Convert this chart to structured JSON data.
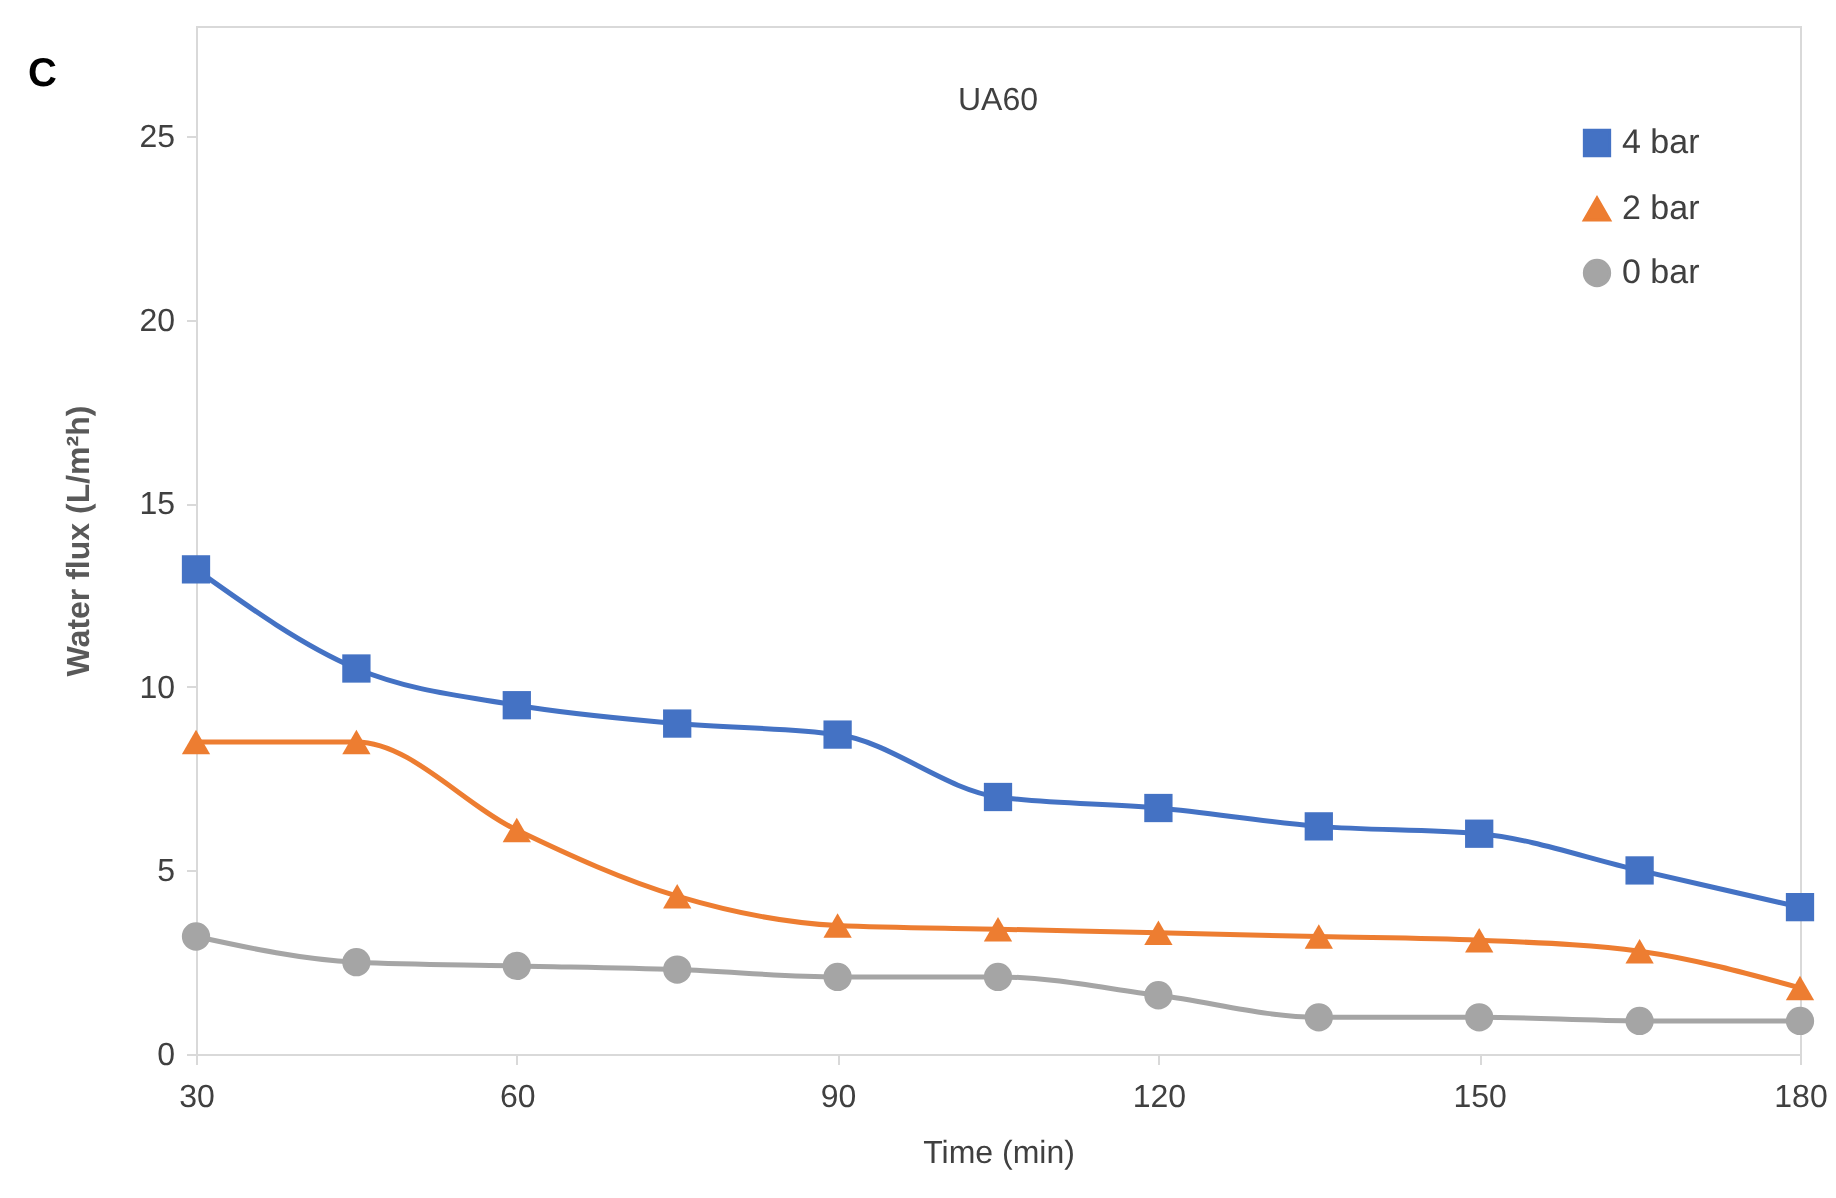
{
  "chart_data": {
    "type": "line",
    "title": "UA60",
    "xlabel": "Time (min)",
    "ylabel": "Water flux (L/m²h)",
    "annotations": [
      "C"
    ],
    "x": [
      30,
      45,
      60,
      75,
      90,
      105,
      120,
      135,
      150,
      165,
      180
    ],
    "series": [
      {
        "name": "4 bar",
        "color": "#4472c4",
        "marker": "square",
        "values": [
          13.2,
          10.5,
          9.5,
          9.0,
          8.7,
          7.0,
          6.7,
          6.2,
          6.0,
          5.0,
          4.0
        ]
      },
      {
        "name": "2 bar",
        "color": "#ed7d31",
        "marker": "triangle",
        "values": [
          8.5,
          8.5,
          6.1,
          4.3,
          3.5,
          3.4,
          3.3,
          3.2,
          3.1,
          2.8,
          1.8
        ]
      },
      {
        "name": "0 bar",
        "color": "#a5a5a5",
        "marker": "circle",
        "values": [
          3.2,
          2.5,
          2.4,
          2.3,
          2.1,
          2.1,
          1.6,
          1.0,
          1.0,
          0.9,
          0.9
        ]
      }
    ],
    "xlim": [
      30,
      180
    ],
    "xticks": [
      30,
      60,
      90,
      120,
      150,
      180
    ],
    "ylim": [
      0,
      28
    ],
    "yticks": [
      0,
      5,
      10,
      15,
      20,
      25
    ],
    "grid": false,
    "legend": "top right"
  }
}
